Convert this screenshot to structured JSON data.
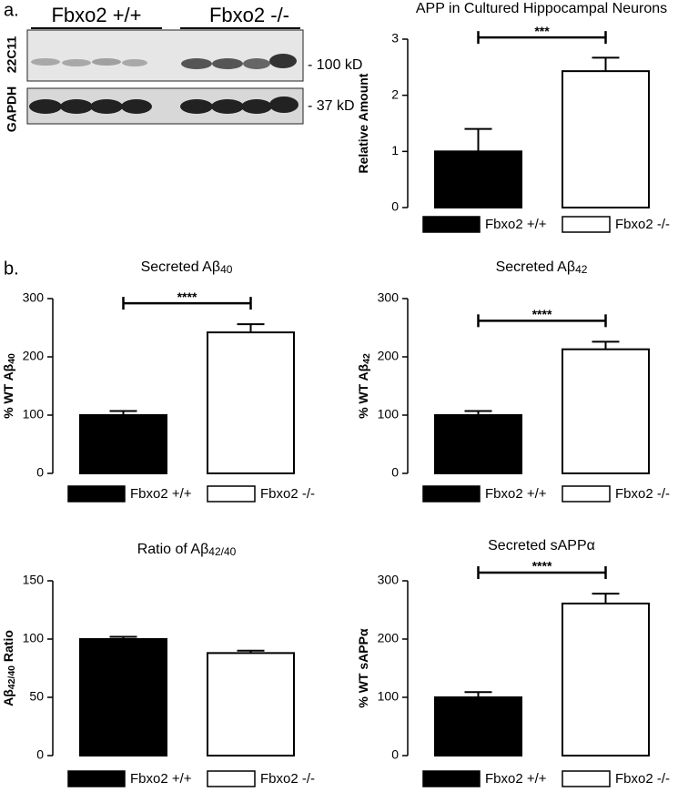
{
  "panel_labels": [
    "a.",
    "b."
  ],
  "blot": {
    "groups": [
      "Fbxo2 +/+",
      "Fbxo2 -/-"
    ],
    "antibodies": [
      "22C11",
      "GAPDH"
    ],
    "markers": [
      "- 100 kD",
      "- 37 kD"
    ]
  },
  "chart_data": [
    {
      "type": "bar",
      "title": [
        "APP in Cultured Hippocampal Neurons"
      ],
      "ylabel": [
        "Relative Amount"
      ],
      "categories": [
        "Fbxo2 +/+",
        "Fbxo2 -/-"
      ],
      "colors": [
        "#000000",
        "#ffffff"
      ],
      "values": [
        1.0,
        2.43
      ],
      "errors": [
        0.4,
        0.24
      ],
      "significance": "***",
      "ylim": [
        0,
        3
      ],
      "yticks": [
        0,
        1,
        2,
        3
      ]
    },
    {
      "type": "bar",
      "title": [
        "Secreted Aβ",
        "40"
      ],
      "ylabel": [
        "% WT Aβ",
        "40"
      ],
      "categories": [
        "Fbxo2 +/+",
        "Fbxo2 -/-"
      ],
      "colors": [
        "#000000",
        "#ffffff"
      ],
      "values": [
        100,
        242
      ],
      "errors": [
        7,
        14
      ],
      "significance": "****",
      "ylim": [
        0,
        300
      ],
      "yticks": [
        0,
        100,
        200,
        300
      ]
    },
    {
      "type": "bar",
      "title": [
        "Secreted Aβ",
        "42"
      ],
      "ylabel": [
        "% WT Aβ",
        "42"
      ],
      "categories": [
        "Fbxo2 +/+",
        "Fbxo2 -/-"
      ],
      "colors": [
        "#000000",
        "#ffffff"
      ],
      "values": [
        100,
        213
      ],
      "errors": [
        7,
        13
      ],
      "significance": "****",
      "ylim": [
        0,
        300
      ],
      "yticks": [
        0,
        100,
        200,
        300
      ]
    },
    {
      "type": "bar",
      "title": [
        "Ratio of Aβ",
        "42/40"
      ],
      "ylabel": [
        "Aβ",
        "42/40",
        " Ratio"
      ],
      "categories": [
        "Fbxo2 +/+",
        "Fbxo2 -/-"
      ],
      "colors": [
        "#000000",
        "#ffffff"
      ],
      "values": [
        100,
        88
      ],
      "errors": [
        2,
        2
      ],
      "ylim": [
        0,
        150
      ],
      "yticks": [
        0,
        50,
        100,
        150
      ]
    },
    {
      "type": "bar",
      "title": [
        "Secreted sAPPα"
      ],
      "ylabel": [
        "% WT sAPPα"
      ],
      "categories": [
        "Fbxo2 +/+",
        "Fbxo2 -/-"
      ],
      "colors": [
        "#000000",
        "#ffffff"
      ],
      "values": [
        100,
        261
      ],
      "errors": [
        9,
        17
      ],
      "significance": "****",
      "ylim": [
        0,
        300
      ],
      "yticks": [
        0,
        100,
        200,
        300
      ]
    }
  ]
}
